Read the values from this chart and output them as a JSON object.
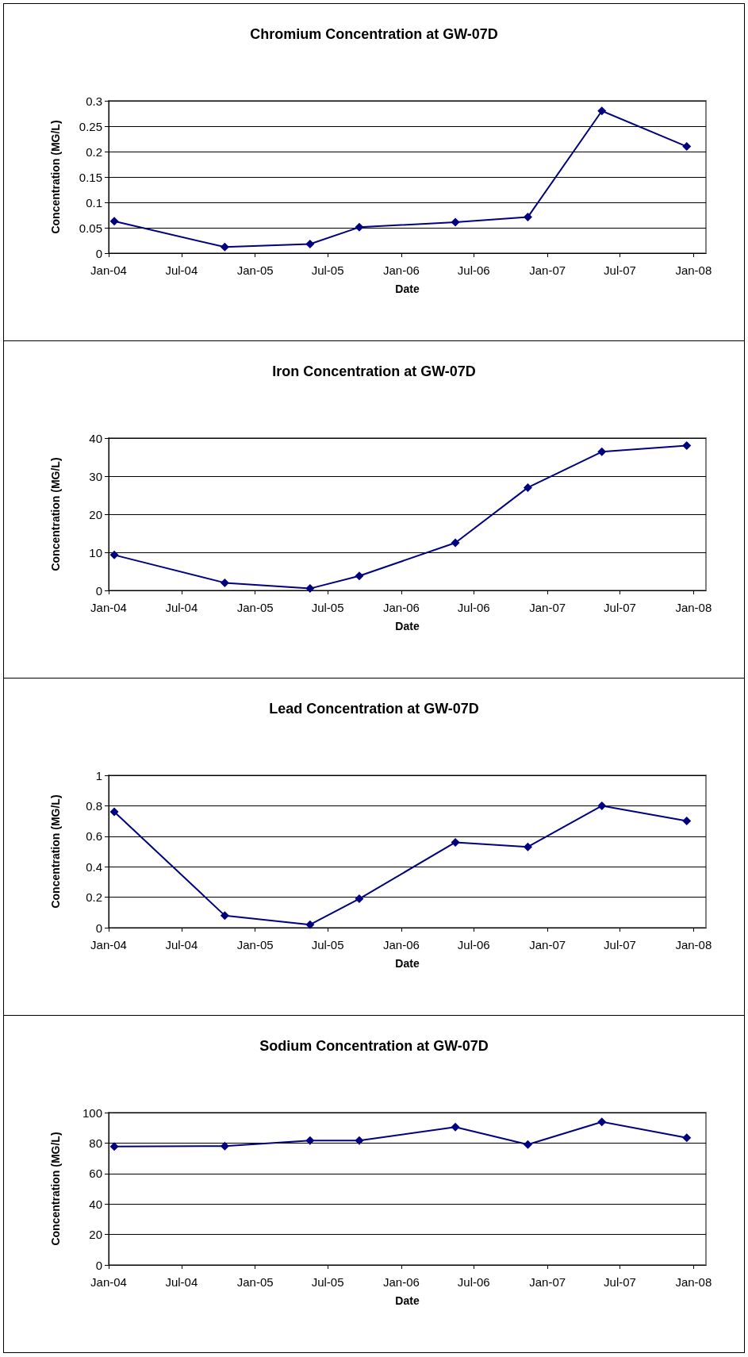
{
  "chart_data": [
    {
      "type": "line",
      "title": "Chromium Concentration at GW-07D",
      "xlabel": "Date",
      "ylabel": "Concentration (MG/L)",
      "marker": "diamond",
      "grid": "y",
      "color": "#000080",
      "x": [
        "2004-01-15",
        "2004-10-17",
        "2005-05-18",
        "2005-09-18",
        "2006-05-16",
        "2006-11-13",
        "2007-05-17",
        "2007-12-15"
      ],
      "values": [
        0.063,
        0.012,
        0.018,
        0.051,
        0.061,
        0.071,
        0.28,
        0.21
      ],
      "xlim": [
        "2004-01-01",
        "2008-02-01"
      ],
      "xticks": [
        {
          "value": "2004-01-01",
          "label": "Jan-04"
        },
        {
          "value": "2004-07-01",
          "label": "Jul-04"
        },
        {
          "value": "2005-01-01",
          "label": "Jan-05"
        },
        {
          "value": "2005-07-01",
          "label": "Jul-05"
        },
        {
          "value": "2006-01-01",
          "label": "Jan-06"
        },
        {
          "value": "2006-07-01",
          "label": "Jul-06"
        },
        {
          "value": "2007-01-01",
          "label": "Jan-07"
        },
        {
          "value": "2007-07-01",
          "label": "Jul-07"
        },
        {
          "value": "2008-01-01",
          "label": "Jan-08"
        }
      ],
      "ylim": [
        0,
        0.3
      ],
      "yticks": [
        0,
        0.05,
        0.1,
        0.15,
        0.2,
        0.25,
        0.3
      ]
    },
    {
      "type": "line",
      "title": "Iron Concentration at GW-07D",
      "xlabel": "Date",
      "ylabel": "Concentration (MG/L)",
      "marker": "diamond",
      "grid": "y",
      "color": "#000080",
      "x": [
        "2004-01-15",
        "2004-10-17",
        "2005-05-18",
        "2005-09-18",
        "2006-05-16",
        "2006-11-13",
        "2007-05-17",
        "2007-12-15"
      ],
      "values": [
        9.3,
        2.0,
        0.5,
        3.8,
        12.5,
        27,
        36.4,
        38
      ],
      "xlim": [
        "2004-01-01",
        "2008-02-01"
      ],
      "xticks": [
        {
          "value": "2004-01-01",
          "label": "Jan-04"
        },
        {
          "value": "2004-07-01",
          "label": "Jul-04"
        },
        {
          "value": "2005-01-01",
          "label": "Jan-05"
        },
        {
          "value": "2005-07-01",
          "label": "Jul-05"
        },
        {
          "value": "2006-01-01",
          "label": "Jan-06"
        },
        {
          "value": "2006-07-01",
          "label": "Jul-06"
        },
        {
          "value": "2007-01-01",
          "label": "Jan-07"
        },
        {
          "value": "2007-07-01",
          "label": "Jul-07"
        },
        {
          "value": "2008-01-01",
          "label": "Jan-08"
        }
      ],
      "ylim": [
        0,
        40
      ],
      "yticks": [
        0,
        10,
        20,
        30,
        40
      ]
    },
    {
      "type": "line",
      "title": "Lead Concentration at GW-07D",
      "xlabel": "Date",
      "ylabel": "Concentration (MG/L)",
      "marker": "diamond",
      "grid": "y",
      "color": "#000080",
      "x": [
        "2004-01-15",
        "2004-10-17",
        "2005-05-18",
        "2005-09-18",
        "2006-05-16",
        "2006-11-13",
        "2007-05-17",
        "2007-12-15"
      ],
      "values": [
        0.76,
        0.08,
        0.02,
        0.19,
        0.56,
        0.53,
        0.8,
        0.7
      ],
      "xlim": [
        "2004-01-01",
        "2008-02-01"
      ],
      "xticks": [
        {
          "value": "2004-01-01",
          "label": "Jan-04"
        },
        {
          "value": "2004-07-01",
          "label": "Jul-04"
        },
        {
          "value": "2005-01-01",
          "label": "Jan-05"
        },
        {
          "value": "2005-07-01",
          "label": "Jul-05"
        },
        {
          "value": "2006-01-01",
          "label": "Jan-06"
        },
        {
          "value": "2006-07-01",
          "label": "Jul-06"
        },
        {
          "value": "2007-01-01",
          "label": "Jan-07"
        },
        {
          "value": "2007-07-01",
          "label": "Jul-07"
        },
        {
          "value": "2008-01-01",
          "label": "Jan-08"
        }
      ],
      "ylim": [
        0,
        1
      ],
      "yticks": [
        0,
        0.2,
        0.4,
        0.6,
        0.8,
        1
      ]
    },
    {
      "type": "line",
      "title": "Sodium Concentration at GW-07D",
      "xlabel": "Date",
      "ylabel": "Concentration (MG/L)",
      "marker": "diamond",
      "grid": "y",
      "color": "#000080",
      "x": [
        "2004-01-15",
        "2004-10-17",
        "2005-05-18",
        "2005-09-18",
        "2006-05-16",
        "2006-11-13",
        "2007-05-17",
        "2007-12-15"
      ],
      "values": [
        77.7,
        78,
        81.7,
        81.7,
        90.5,
        79,
        93.9,
        83.5
      ],
      "xlim": [
        "2004-01-01",
        "2008-02-01"
      ],
      "xticks": [
        {
          "value": "2004-01-01",
          "label": "Jan-04"
        },
        {
          "value": "2004-07-01",
          "label": "Jul-04"
        },
        {
          "value": "2005-01-01",
          "label": "Jan-05"
        },
        {
          "value": "2005-07-01",
          "label": "Jul-05"
        },
        {
          "value": "2006-01-01",
          "label": "Jan-06"
        },
        {
          "value": "2006-07-01",
          "label": "Jul-06"
        },
        {
          "value": "2007-01-01",
          "label": "Jan-07"
        },
        {
          "value": "2007-07-01",
          "label": "Jul-07"
        },
        {
          "value": "2008-01-01",
          "label": "Jan-08"
        }
      ],
      "ylim": [
        0,
        100
      ],
      "yticks": [
        0,
        20,
        40,
        60,
        80,
        100
      ]
    }
  ]
}
